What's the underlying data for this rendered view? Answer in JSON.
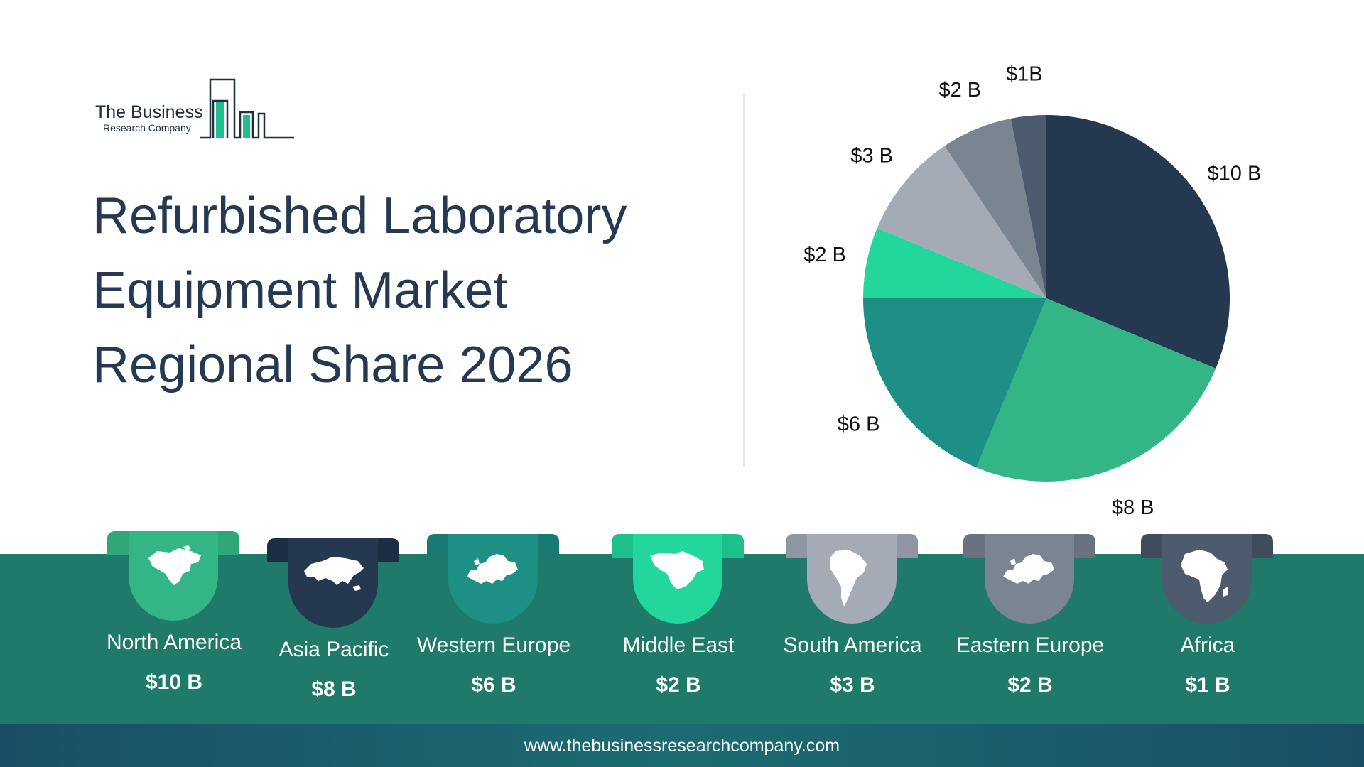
{
  "logo": {
    "name": "The Business",
    "sub": "Research Company",
    "accent": "#1fbf8f",
    "ink": "#1f2f40"
  },
  "title_lines": [
    "Refurbished Laboratory",
    "Equipment Market",
    "Regional Share 2026"
  ],
  "chart_data": {
    "type": "pie",
    "title": "Refurbished Laboratory Equipment Market Regional Share 2026",
    "slices": [
      {
        "label": "North America",
        "value": 10,
        "value_label": "$10 B",
        "color": "#243850"
      },
      {
        "label": "Asia Pacific",
        "value": 8,
        "value_label": "$8 B",
        "color": "#34b585"
      },
      {
        "label": "Western Europe",
        "value": 6,
        "value_label": "$6 B",
        "color": "#1d8f85"
      },
      {
        "label": "Middle East",
        "value": 2,
        "value_label": "$2 B",
        "color": "#22d69c"
      },
      {
        "label": "South America",
        "value": 3,
        "value_label": "$3 B",
        "color": "#a5abb5"
      },
      {
        "label": "Eastern Europe",
        "value": 2,
        "value_label": "$2 B",
        "color": "#7b8591"
      },
      {
        "label": "Africa",
        "value": 1,
        "value_label": "$1B",
        "color": "#4c5b6d"
      }
    ],
    "start_angle_deg": 0,
    "direction": "clockwise"
  },
  "regions": [
    {
      "name": "North America",
      "value": "$10 B",
      "color": "#34b585",
      "tab": "#2fa77b",
      "icon": "north-america-map-icon"
    },
    {
      "name": "Asia Pacific",
      "value": "$8 B",
      "color": "#243850",
      "tab": "#1c2e42",
      "icon": "asia-map-icon"
    },
    {
      "name": "Western Europe",
      "value": "$6 B",
      "color": "#1d8f85",
      "tab": "#187a72",
      "icon": "europe-map-icon"
    },
    {
      "name": "Middle East",
      "value": "$2 B",
      "color": "#22d69c",
      "tab": "#1cc08b",
      "icon": "middle-east-map-icon"
    },
    {
      "name": "South America",
      "value": "$3 B",
      "color": "#a5abb5",
      "tab": "#8f96a1",
      "icon": "south-america-map-icon"
    },
    {
      "name": "Eastern Europe",
      "value": "$2 B",
      "color": "#7b8591",
      "tab": "#69727e",
      "icon": "europe-map-icon"
    },
    {
      "name": "Africa",
      "value": "$1 B",
      "color": "#4c5b6d",
      "tab": "#3f4c5c",
      "icon": "africa-map-icon"
    }
  ],
  "footer": {
    "url": "www.thebusinessresearchcompany.com"
  }
}
